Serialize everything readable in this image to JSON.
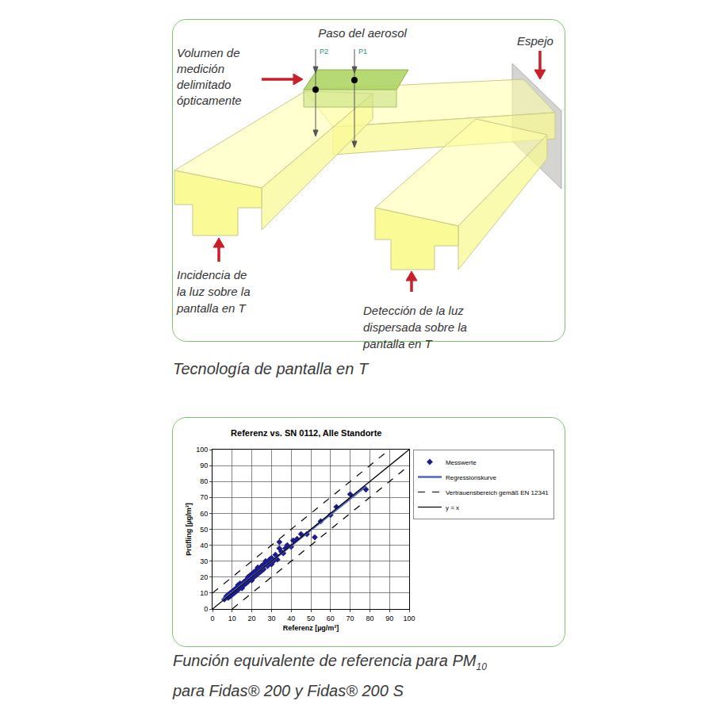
{
  "diagram": {
    "labels": {
      "aerosol": "Paso del aerosol",
      "p2": "P2",
      "p1": "P1",
      "volume": [
        "Volumen de",
        "medición",
        "delimitado",
        "ópticamente"
      ],
      "mirror": "Espejo",
      "incidence": [
        "Incidencia de",
        "la luz sobre la",
        "pantalla en T"
      ],
      "detection": [
        "Detección de la luz",
        "dispersada sobre la",
        "pantalla en T"
      ]
    },
    "caption": "Tecnología de pantalla en T"
  },
  "chart_data": {
    "type": "scatter",
    "title": "Referenz vs. SN 0112, Alle Standorte",
    "x_label": "Referenz [µg/m³]",
    "y_label": "Prüfling [µg/m³]",
    "xlim": [
      0,
      100
    ],
    "ylim": [
      0,
      100
    ],
    "xticks": [
      0,
      10,
      20,
      30,
      40,
      50,
      60,
      70,
      80,
      90,
      100
    ],
    "yticks": [
      0,
      10,
      20,
      30,
      40,
      50,
      60,
      70,
      80,
      90,
      100
    ],
    "grid": true,
    "legend": "right",
    "series": [
      {
        "name": "Messwerte",
        "type": "scatter",
        "marker": "diamond",
        "color": "#1c1c8c",
        "x": [
          6,
          7,
          8,
          8,
          9,
          9,
          10,
          10,
          11,
          11,
          12,
          12,
          13,
          13,
          14,
          14,
          15,
          15,
          16,
          16,
          17,
          17,
          18,
          18,
          19,
          19,
          20,
          20,
          21,
          21,
          22,
          22,
          23,
          23,
          24,
          24,
          25,
          25,
          26,
          26,
          27,
          28,
          28,
          29,
          30,
          30,
          31,
          32,
          33,
          34,
          34,
          35,
          36,
          37,
          38,
          40,
          41,
          43,
          45,
          48,
          52,
          55,
          60,
          63,
          70,
          78
        ],
        "values": [
          6,
          8,
          7,
          9,
          10,
          8,
          11,
          9,
          12,
          10,
          13,
          11,
          15,
          12,
          14,
          16,
          15,
          13,
          17,
          15,
          18,
          16,
          20,
          17,
          19,
          21,
          22,
          18,
          20,
          23,
          24,
          21,
          22,
          26,
          25,
          23,
          27,
          24,
          25,
          28,
          30,
          27,
          29,
          31,
          28,
          32,
          30,
          34,
          31,
          38,
          42,
          36,
          35,
          38,
          40,
          39,
          43,
          44,
          47,
          47,
          45,
          55,
          59,
          64,
          72,
          75
        ]
      },
      {
        "name": "Regressionskurve",
        "type": "line",
        "line_style": "solid",
        "color": "#4a63c8",
        "x": [
          5,
          78
        ],
        "values": [
          5.5,
          77
        ]
      },
      {
        "name": "Vertrauensbereich gemäß EN 12341",
        "type": "line",
        "line_style": "dash",
        "color": "#000000",
        "x": [
          0,
          90,
          null,
          10,
          100
        ],
        "values": [
          10,
          100,
          null,
          0,
          90
        ]
      },
      {
        "name": "y = x",
        "type": "line",
        "line_style": "solid",
        "color": "#000000",
        "x": [
          0,
          100
        ],
        "values": [
          0,
          100
        ]
      }
    ]
  },
  "chart_caption": {
    "line1": "Función equivalente de referencia para PM",
    "line1_subscript": "10",
    "line2": "para Fidas® 200 y Fidas® 200 S"
  }
}
